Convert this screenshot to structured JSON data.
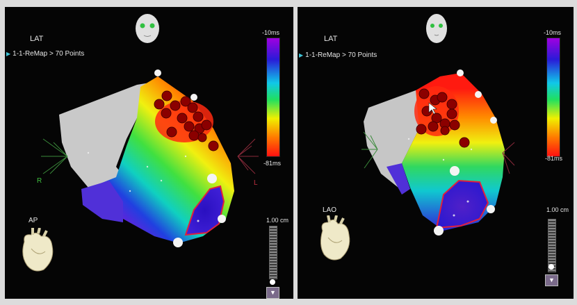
{
  "left_panel": {
    "map_type": "LAT",
    "map_label": "1-1-ReMap > 70 Points",
    "colorbar": {
      "top_label": "-10ms",
      "bottom_label": "-81ms"
    },
    "view_label": "AP",
    "scale_label": "1.00 cm",
    "orientation_right": "R",
    "orientation_left": "L"
  },
  "right_panel": {
    "map_type": "LAT",
    "map_label": "1-1-ReMap > 70 Points",
    "colorbar": {
      "top_label": "-10ms",
      "bottom_label": "-81ms"
    },
    "view_label": "LAO",
    "scale_label": "1.00 cm"
  },
  "icons": {
    "face": "face-icon",
    "heart": "heart-model-icon",
    "button": "chevron-down-icon"
  },
  "colors": {
    "background": "#050505",
    "lesion_marker": "#8b0000",
    "outline": "#e0203c",
    "arrow": "#3ec3d6"
  }
}
